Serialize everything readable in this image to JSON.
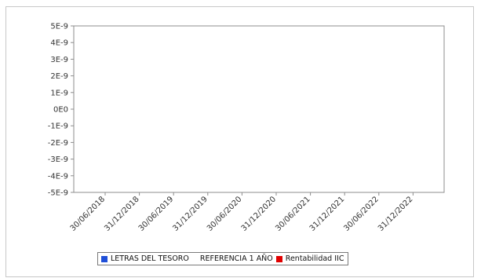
{
  "chart_data": {
    "type": "line",
    "title": "",
    "xlabel": "",
    "ylabel": "",
    "ylim": [
      -5e-09,
      5e-09
    ],
    "y_ticks": [
      "5E-9",
      "4E-9",
      "3E-9",
      "2E-9",
      "1E-9",
      "0E0",
      "-1E-9",
      "-2E-9",
      "-3E-9",
      "-4E-9",
      "-5E-9"
    ],
    "x_ticks": [
      "30/06/2018",
      "31/12/2018",
      "30/06/2019",
      "31/12/2019",
      "30/06/2020",
      "31/12/2020",
      "30/06/2021",
      "31/12/2021",
      "30/06/2022",
      "31/12/2022"
    ],
    "grid": false,
    "legend_position": "bottom",
    "series": [
      {
        "name": "LETRAS DEL TESORO",
        "color": "#1f4fd8",
        "values": []
      },
      {
        "name": "REFERENCIA 1 AÑO",
        "color": "",
        "values": []
      },
      {
        "name": "Rentabilidad IIC",
        "color": "#e00000",
        "values": []
      }
    ]
  }
}
